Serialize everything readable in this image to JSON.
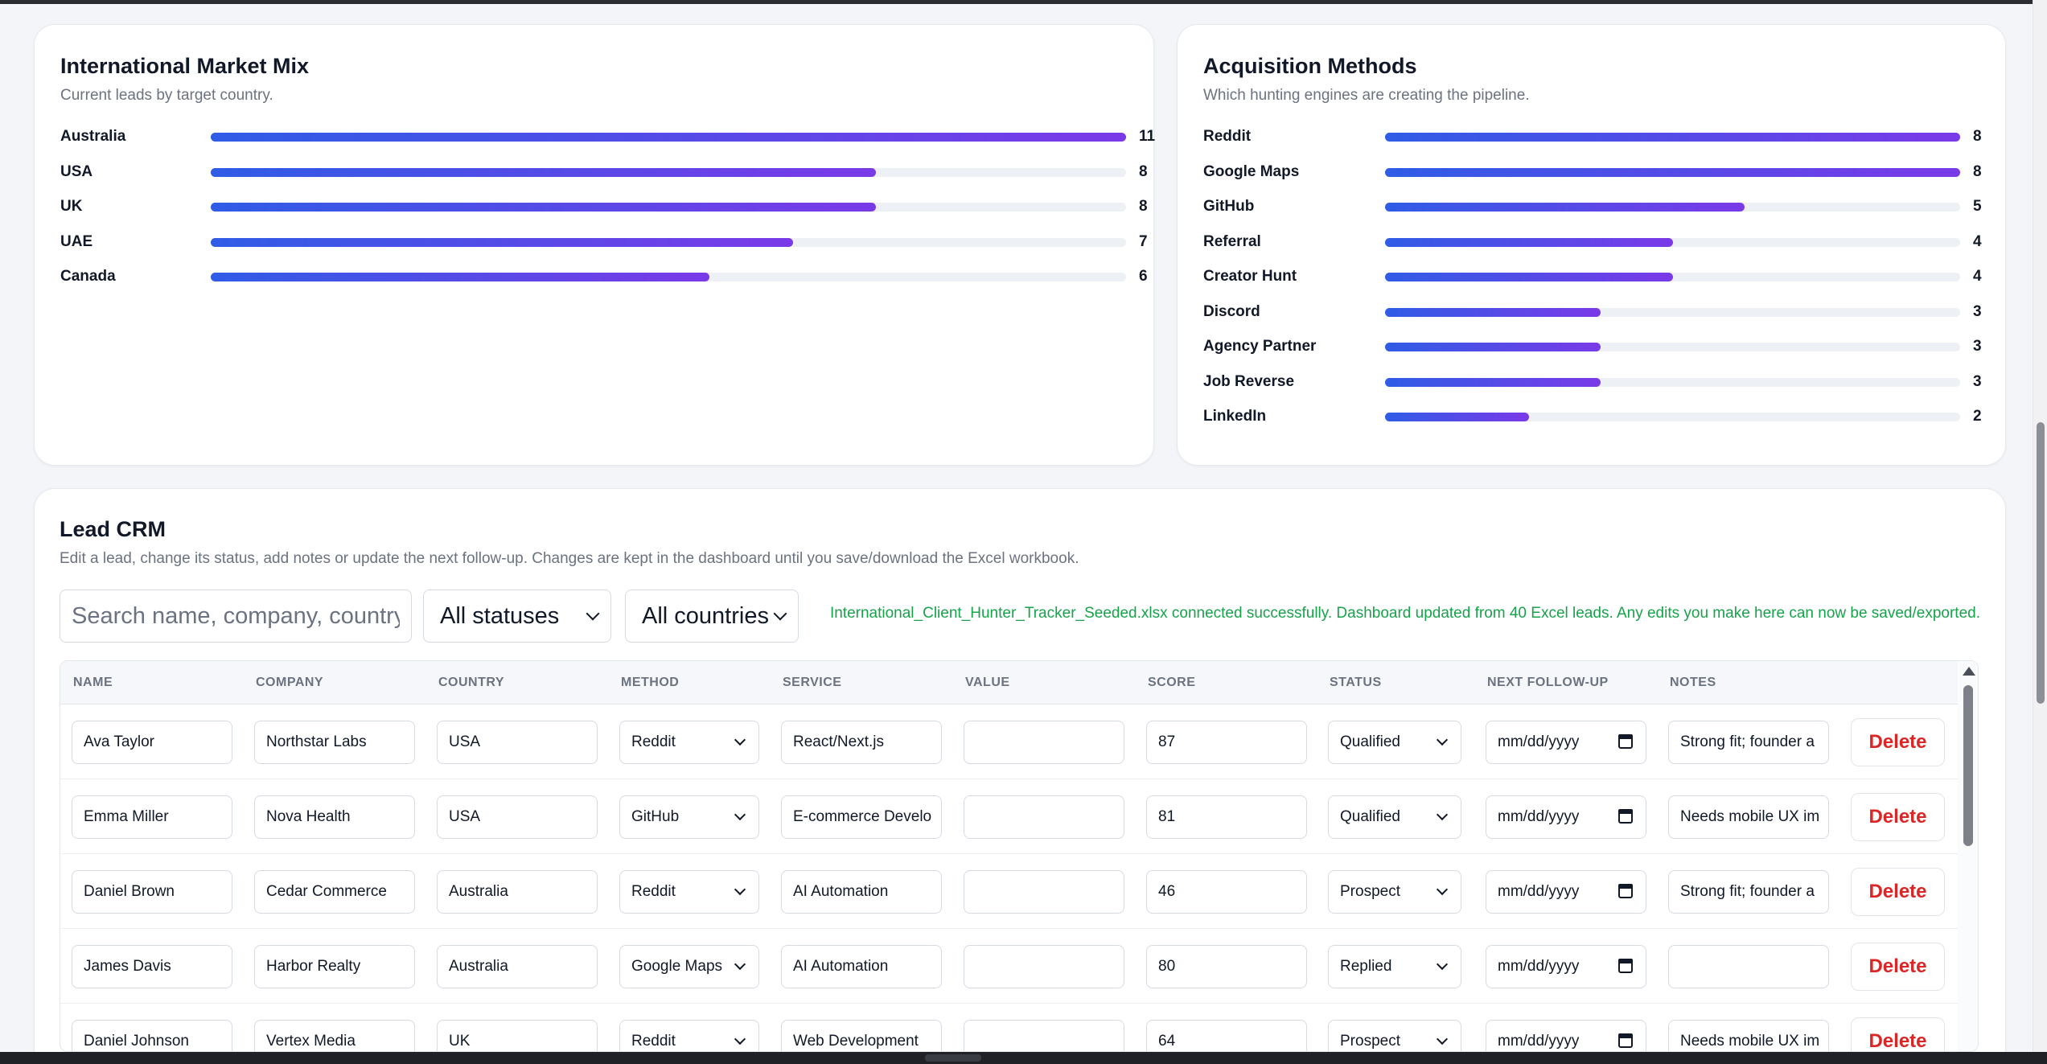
{
  "market_mix": {
    "title": "International Market Mix",
    "subtitle": "Current leads by target country.",
    "items": [
      {
        "label": "Australia",
        "value": 11,
        "fraction": 1.0,
        "display": "11"
      },
      {
        "label": "USA",
        "value": 8,
        "fraction": 0.727,
        "display": "8"
      },
      {
        "label": "UK",
        "value": 8,
        "fraction": 0.727,
        "display": "8"
      },
      {
        "label": "UAE",
        "value": 7,
        "fraction": 0.636,
        "display": "7"
      },
      {
        "label": "Canada",
        "value": 6,
        "fraction": 0.545,
        "display": "6"
      }
    ]
  },
  "acquisition": {
    "title": "Acquisition Methods",
    "subtitle": "Which hunting engines are creating the pipeline.",
    "items": [
      {
        "label": "Reddit",
        "value": 8,
        "fraction": 1.0,
        "display": "8"
      },
      {
        "label": "Google Maps",
        "value": 8,
        "fraction": 1.0,
        "display": "8"
      },
      {
        "label": "GitHub",
        "value": 5,
        "fraction": 0.625,
        "display": "5"
      },
      {
        "label": "Referral",
        "value": 4,
        "fraction": 0.5,
        "display": "4"
      },
      {
        "label": "Creator Hunt",
        "value": 4,
        "fraction": 0.5,
        "display": "4"
      },
      {
        "label": "Discord",
        "value": 3,
        "fraction": 0.375,
        "display": "3"
      },
      {
        "label": "Agency Partner",
        "value": 3,
        "fraction": 0.375,
        "display": "3"
      },
      {
        "label": "Job Reverse",
        "value": 3,
        "fraction": 0.375,
        "display": "3"
      },
      {
        "label": "LinkedIn",
        "value": 2,
        "fraction": 0.25,
        "display": "2"
      }
    ]
  },
  "crm": {
    "title": "Lead CRM",
    "subtitle": "Edit a lead, change its status, add notes or update the next follow-up. Changes are kept in the dashboard until you save/download the Excel workbook.",
    "search_placeholder": "Search name, company, country,",
    "status_filter": "All statuses",
    "country_filter": "All countries",
    "status_message": "International_Client_Hunter_Tracker_Seeded.xlsx connected successfully. Dashboard updated from 40 Excel leads. Any edits you make here can now be saved/exported.",
    "columns": [
      "NAME",
      "COMPANY",
      "COUNTRY",
      "METHOD",
      "SERVICE",
      "VALUE",
      "SCORE",
      "STATUS",
      "NEXT FOLLOW-UP",
      "NOTES"
    ],
    "date_placeholder": "mm/dd/yyyy",
    "delete_label": "Delete",
    "rows": [
      {
        "name": "Ava Taylor",
        "company": "Northstar Labs",
        "country": "USA",
        "method": "Reddit",
        "service": "React/Next.js",
        "value": "",
        "score": "87",
        "status": "Qualified",
        "notes": "Strong fit; founder a"
      },
      {
        "name": "Emma Miller",
        "company": "Nova Health",
        "country": "USA",
        "method": "GitHub",
        "service": "E-commerce Develo",
        "value": "",
        "score": "81",
        "status": "Qualified",
        "notes": "Needs mobile UX im"
      },
      {
        "name": "Daniel Brown",
        "company": "Cedar Commerce",
        "country": "Australia",
        "method": "Reddit",
        "service": "AI Automation",
        "value": "",
        "score": "46",
        "status": "Prospect",
        "notes": "Strong fit; founder a"
      },
      {
        "name": "James Davis",
        "company": "Harbor Realty",
        "country": "Australia",
        "method": "Google Maps",
        "service": "AI Automation",
        "value": "",
        "score": "80",
        "status": "Replied",
        "notes": ""
      },
      {
        "name": "Daniel Johnson",
        "company": "Vertex Media",
        "country": "UK",
        "method": "Reddit",
        "service": "Web Development",
        "value": "",
        "score": "64",
        "status": "Prospect",
        "notes": "Needs mobile UX im"
      }
    ]
  }
}
